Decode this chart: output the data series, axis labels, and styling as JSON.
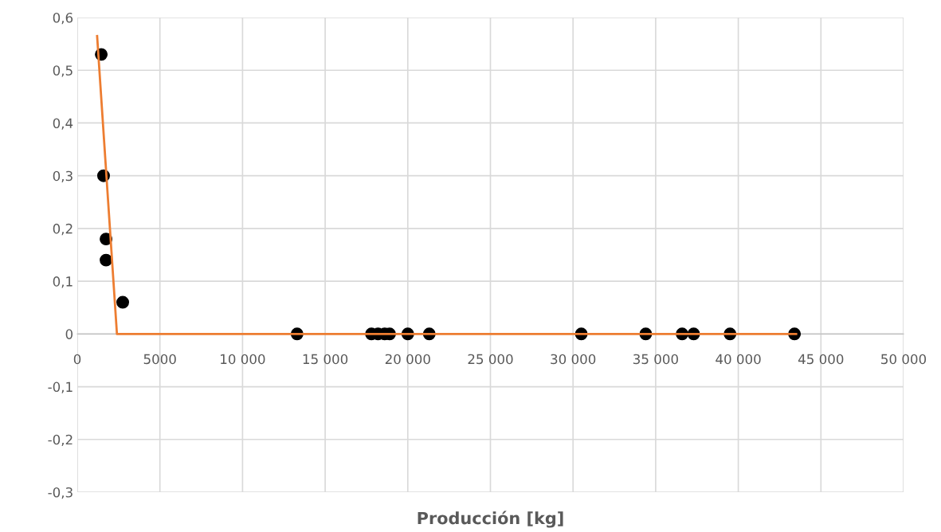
{
  "chart_data": {
    "type": "scatter",
    "xlabel": "Producción [kg]",
    "xlim": [
      0,
      50000
    ],
    "xticks": [
      0,
      5000,
      {
        "value": 10000,
        "label": "10 000"
      },
      {
        "value": 15000,
        "label": "15 000"
      },
      {
        "value": 20000,
        "label": "20 000"
      },
      {
        "value": 25000,
        "label": "25 000"
      },
      {
        "value": 30000,
        "label": "30 000"
      },
      {
        "value": 35000,
        "label": "35 000"
      },
      {
        "value": 40000,
        "label": "40 000"
      },
      {
        "value": 45000,
        "label": "45 000"
      },
      {
        "value": 50000,
        "label": "50 000"
      }
    ],
    "ylim": [
      -0.3,
      0.6
    ],
    "yticks": [
      {
        "value": -0.3,
        "label": "-0,3"
      },
      {
        "value": -0.2,
        "label": "-0,2"
      },
      {
        "value": -0.1,
        "label": "-0,1"
      },
      0,
      {
        "value": 0.1,
        "label": "0,1"
      },
      {
        "value": 0.2,
        "label": "0,2"
      },
      {
        "value": 0.3,
        "label": "0,3"
      },
      {
        "value": 0.4,
        "label": "0,4"
      },
      {
        "value": 0.5,
        "label": "0,5"
      },
      {
        "value": 0.6,
        "label": "0,6"
      }
    ],
    "grid": true,
    "marker": "circle",
    "series": [
      {
        "color": "#000000",
        "x": [
          1450,
          1590,
          1740,
          1740,
          2750,
          13300,
          17800,
          18200,
          18600,
          18900,
          20000,
          21300,
          30500,
          34400,
          36600,
          37300,
          39500,
          43400
        ],
        "values": [
          0.53,
          0.3,
          0.18,
          0.14,
          0.06,
          0,
          0,
          0,
          0,
          0,
          0,
          0,
          0,
          0,
          0,
          0,
          0,
          0
        ]
      },
      {
        "type": "line",
        "color": "#ed7d31",
        "marker": "none",
        "x": [
          1200,
          2400,
          43500
        ],
        "values": [
          0.565,
          0,
          0
        ]
      }
    ]
  }
}
